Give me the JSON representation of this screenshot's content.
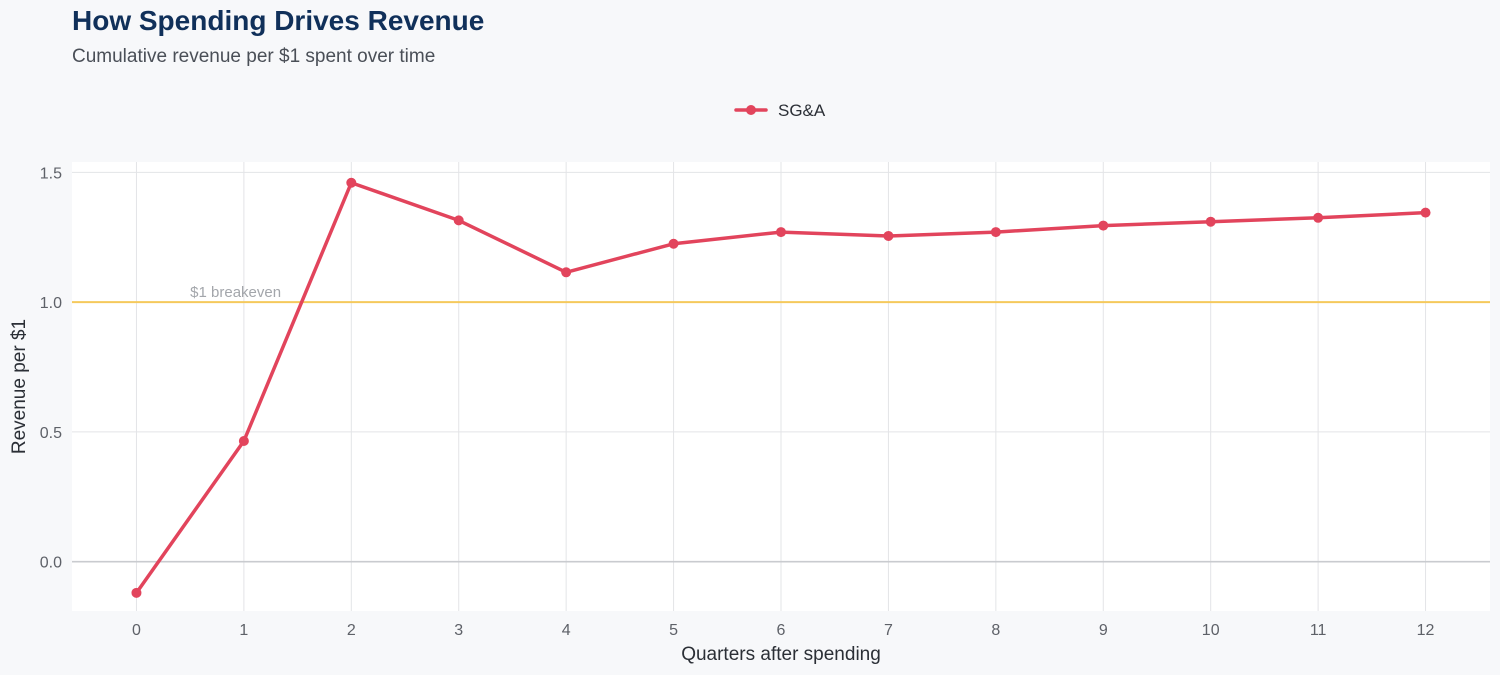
{
  "chart_data": {
    "type": "line",
    "title": "How Spending Drives Revenue",
    "subtitle": "Cumulative revenue per $1 spent over time",
    "xlabel": "Quarters after spending",
    "ylabel": "Revenue per $1",
    "x": [
      0,
      1,
      2,
      3,
      4,
      5,
      6,
      7,
      8,
      9,
      10,
      11,
      12
    ],
    "x_tick_labels": [
      "0",
      "1",
      "2",
      "3",
      "4",
      "5",
      "6",
      "7",
      "8",
      "9",
      "10",
      "11",
      "12"
    ],
    "y_ticks": [
      0.0,
      0.5,
      1.0,
      1.5
    ],
    "y_tick_labels": [
      "0.0",
      "0.5",
      "1.0",
      "1.5"
    ],
    "xlim": [
      -0.6,
      12.6
    ],
    "ylim": [
      -0.19,
      1.54
    ],
    "grid": true,
    "legend_position": "top-center",
    "series": [
      {
        "name": "SG&A",
        "color": "#e2445c",
        "values": [
          -0.12,
          0.465,
          1.46,
          1.315,
          1.115,
          1.225,
          1.27,
          1.255,
          1.27,
          1.295,
          1.31,
          1.325,
          1.345
        ]
      }
    ],
    "reference_line": {
      "y": 1.0,
      "label": "$1 breakeven",
      "color": "#f5c95c"
    },
    "zero_line_color": "#c9cbcf"
  }
}
